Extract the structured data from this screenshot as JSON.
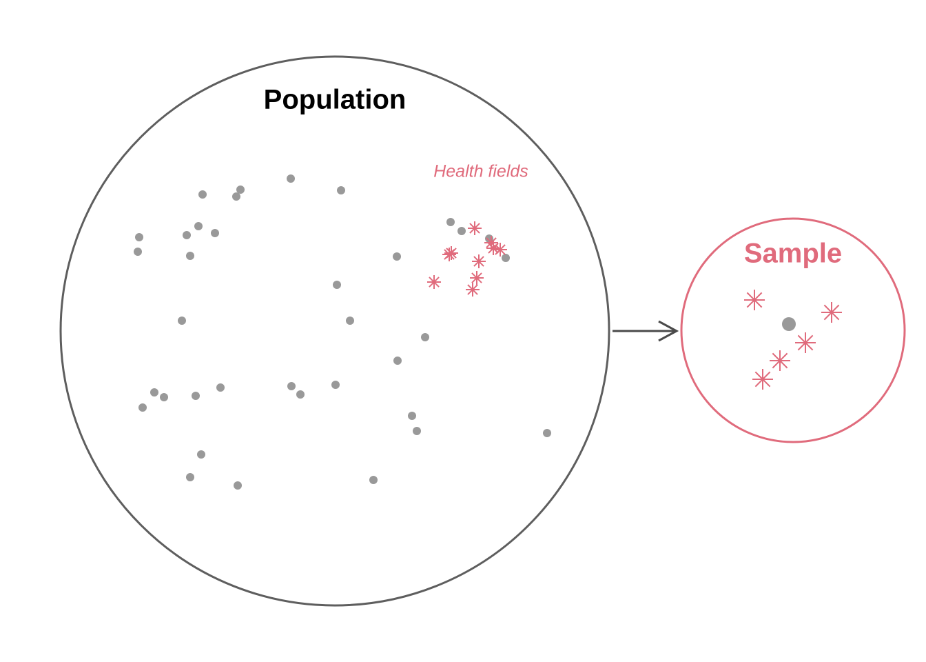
{
  "population": {
    "title": "Population",
    "group_label": "Health fields"
  },
  "sample": {
    "title": "Sample"
  }
}
